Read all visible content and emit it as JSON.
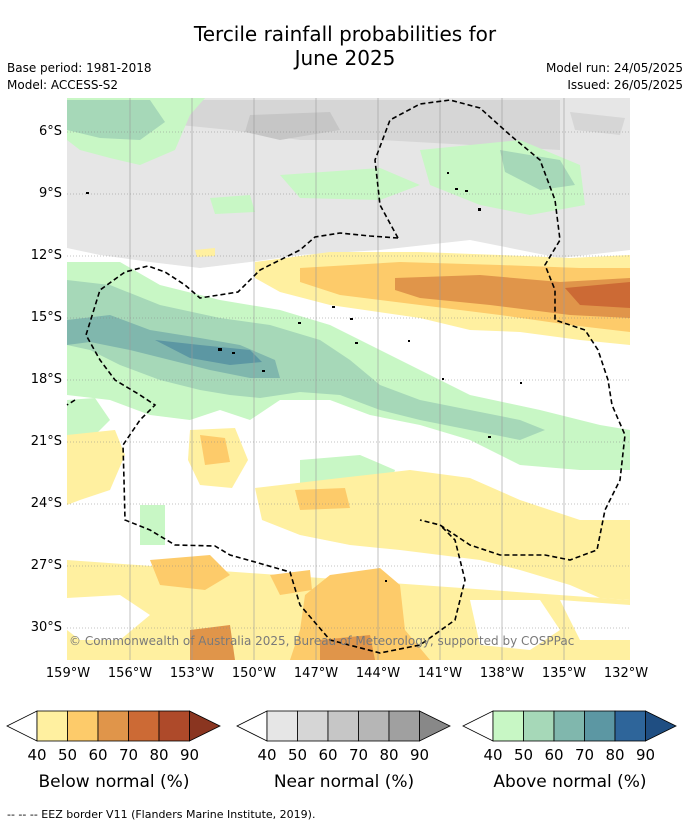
{
  "title_line1": "Tercile rainfall probabilities for",
  "title_line2": "June 2025",
  "base_period": "Base period: 1981-2018",
  "model": "Model: ACCESS-S2",
  "model_run": "Model run: 24/05/2025",
  "issued": "Issued: 26/05/2025",
  "lat_labels": [
    "6°S",
    "9°S",
    "12°S",
    "15°S",
    "18°S",
    "21°S",
    "24°S",
    "27°S",
    "30°S"
  ],
  "lon_labels": [
    "159°W",
    "156°W",
    "153°W",
    "150°W",
    "147°W",
    "144°W",
    "141°W",
    "138°W",
    "135°W",
    "132°W"
  ],
  "credit": "© Commonwealth of Australia 2025, Bureau of Meteorology, supported by COSPPac",
  "legends": [
    {
      "caption": "Below normal (%)",
      "ticks": [
        "40",
        "50",
        "60",
        "70",
        "80",
        "90"
      ],
      "colors": [
        "#ffffff",
        "#fff0a0",
        "#fdcb6a",
        "#e0954a",
        "#cc6a35",
        "#ae4a2a",
        "#8a3520"
      ]
    },
    {
      "caption": "Near normal (%)",
      "ticks": [
        "40",
        "50",
        "60",
        "70",
        "80",
        "90"
      ],
      "colors": [
        "#ffffff",
        "#e6e6e6",
        "#d6d6d6",
        "#c6c6c6",
        "#b6b6b6",
        "#a0a0a0",
        "#888888"
      ]
    },
    {
      "caption": "Above normal (%)",
      "ticks": [
        "40",
        "50",
        "60",
        "70",
        "80",
        "90"
      ],
      "colors": [
        "#ffffff",
        "#c8f7c5",
        "#a6d8b8",
        "#80b7ad",
        "#5c97a3",
        "#2e659a",
        "#1f4e82"
      ]
    }
  ],
  "footnote": "--  --  -- EEZ border V11 (Flanders Marine Institute, 2019)."
}
